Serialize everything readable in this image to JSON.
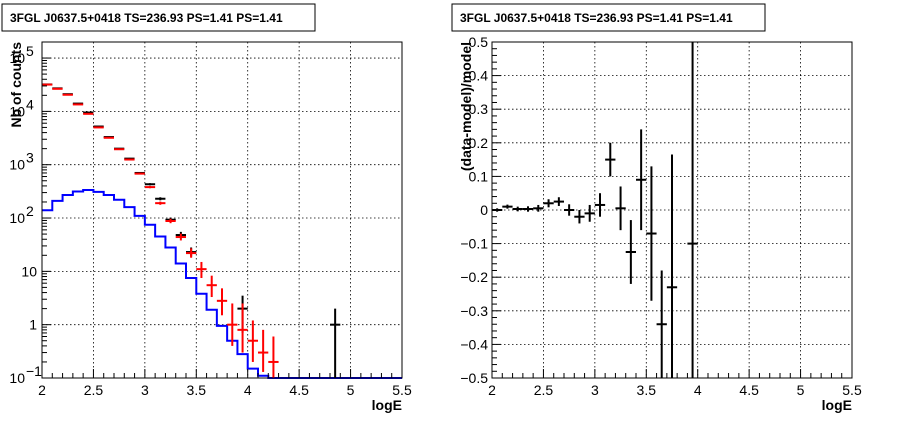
{
  "chart_data": [
    {
      "type": "scatter",
      "title": "3FGL J0637.5+0418 TS=236.93 PS=1.41 PS=1.41",
      "xlabel": "logE",
      "ylabel": "Nb of counts",
      "yscale": "log",
      "xlim": [
        2,
        5.5
      ],
      "ylim": [
        0.1,
        200000
      ],
      "grid": true,
      "x_ticks": [
        {
          "v": 2,
          "label": "2"
        },
        {
          "v": 2.5,
          "label": "2.5"
        },
        {
          "v": 3,
          "label": "3"
        },
        {
          "v": 3.5,
          "label": "3.5"
        },
        {
          "v": 4,
          "label": "4"
        },
        {
          "v": 4.5,
          "label": "4.5"
        },
        {
          "v": 5,
          "label": "5"
        },
        {
          "v": 5.5,
          "label": "5.5"
        }
      ],
      "y_ticks": [
        {
          "v": 0.1,
          "base": "10",
          "exp": "−1"
        },
        {
          "v": 1,
          "base": "1",
          "exp": ""
        },
        {
          "v": 10,
          "base": "10",
          "exp": ""
        },
        {
          "v": 100,
          "base": "10",
          "exp": "2"
        },
        {
          "v": 1000,
          "base": "10",
          "exp": "3"
        },
        {
          "v": 10000,
          "base": "10",
          "exp": "4"
        },
        {
          "v": 100000,
          "base": "10",
          "exp": "5"
        }
      ],
      "series": [
        {
          "kind": "step",
          "color": "#0000ff",
          "bin_edges": [
            2.0,
            2.1,
            2.2,
            2.3,
            2.4,
            2.5,
            2.6,
            2.7,
            2.8,
            2.9,
            3.0,
            3.1,
            3.2,
            3.3,
            3.4,
            3.5,
            3.6,
            3.7,
            3.8,
            3.9,
            4.0,
            4.1,
            4.2,
            4.3,
            4.4,
            4.5,
            4.6,
            4.7,
            4.8,
            4.9,
            5.0,
            5.1,
            5.2,
            5.3,
            5.4,
            5.5
          ],
          "values": [
            140,
            210,
            270,
            315,
            335,
            310,
            270,
            220,
            160,
            110,
            75,
            45,
            28,
            14,
            7.5,
            3.8,
            1.9,
            0.95,
            0.5,
            0.28,
            0.15,
            0.11,
            0.1,
            0.1,
            0.1,
            0.1,
            0.1,
            0.1,
            0.1,
            0.1,
            0.1,
            0.1,
            0.1,
            0.1,
            0.1
          ]
        },
        {
          "kind": "errorbar",
          "color": "#000000",
          "points": [
            {
              "x": 2.05,
              "xerr": 0.05,
              "y": 32000,
              "ylo": 31600,
              "yhi": 32400
            },
            {
              "x": 2.15,
              "xerr": 0.05,
              "y": 27000,
              "ylo": 26700,
              "yhi": 27300
            },
            {
              "x": 2.25,
              "xerr": 0.05,
              "y": 21000,
              "ylo": 20700,
              "yhi": 21300
            },
            {
              "x": 2.35,
              "xerr": 0.05,
              "y": 14000,
              "ylo": 13800,
              "yhi": 14200
            },
            {
              "x": 2.45,
              "xerr": 0.05,
              "y": 9500,
              "ylo": 9300,
              "yhi": 9700
            },
            {
              "x": 2.55,
              "xerr": 0.05,
              "y": 5200,
              "ylo": 5100,
              "yhi": 5300
            },
            {
              "x": 2.65,
              "xerr": 0.05,
              "y": 3300,
              "ylo": 3240,
              "yhi": 3360
            },
            {
              "x": 2.75,
              "xerr": 0.05,
              "y": 2000,
              "ylo": 1950,
              "yhi": 2050
            },
            {
              "x": 2.85,
              "xerr": 0.05,
              "y": 1300,
              "ylo": 1260,
              "yhi": 1340
            },
            {
              "x": 2.95,
              "xerr": 0.05,
              "y": 700,
              "ylo": 675,
              "yhi": 725
            },
            {
              "x": 3.05,
              "xerr": 0.05,
              "y": 430,
              "ylo": 410,
              "yhi": 450
            },
            {
              "x": 3.15,
              "xerr": 0.05,
              "y": 230,
              "ylo": 215,
              "yhi": 245
            },
            {
              "x": 3.25,
              "xerr": 0.05,
              "y": 93,
              "ylo": 84,
              "yhi": 102
            },
            {
              "x": 3.35,
              "xerr": 0.05,
              "y": 48,
              "ylo": 42,
              "yhi": 55
            },
            {
              "x": 3.45,
              "xerr": 0.05,
              "y": 23,
              "ylo": 19,
              "yhi": 28
            },
            {
              "x": 3.95,
              "xerr": 0.05,
              "y": 2,
              "ylo": 0.7,
              "yhi": 3.5
            },
            {
              "x": 4.85,
              "xerr": 0.05,
              "y": 1,
              "ylo": 0.1,
              "yhi": 2
            }
          ]
        },
        {
          "kind": "errorbar",
          "color": "#ff0000",
          "points": [
            {
              "x": 2.05,
              "xerr": 0.05,
              "y": 31800,
              "ylo": 31500,
              "yhi": 32100
            },
            {
              "x": 2.15,
              "xerr": 0.05,
              "y": 26500,
              "ylo": 26200,
              "yhi": 26800
            },
            {
              "x": 2.25,
              "xerr": 0.05,
              "y": 20500,
              "ylo": 20250,
              "yhi": 20750
            },
            {
              "x": 2.35,
              "xerr": 0.05,
              "y": 13500,
              "ylo": 13300,
              "yhi": 13700
            },
            {
              "x": 2.45,
              "xerr": 0.05,
              "y": 9000,
              "ylo": 8850,
              "yhi": 9150
            },
            {
              "x": 2.55,
              "xerr": 0.05,
              "y": 5000,
              "ylo": 4900,
              "yhi": 5100
            },
            {
              "x": 2.65,
              "xerr": 0.05,
              "y": 3200,
              "ylo": 3140,
              "yhi": 3260
            },
            {
              "x": 2.75,
              "xerr": 0.05,
              "y": 1950,
              "ylo": 1900,
              "yhi": 2000
            },
            {
              "x": 2.85,
              "xerr": 0.05,
              "y": 1250,
              "ylo": 1210,
              "yhi": 1290
            },
            {
              "x": 2.95,
              "xerr": 0.05,
              "y": 680,
              "ylo": 655,
              "yhi": 705
            },
            {
              "x": 3.05,
              "xerr": 0.05,
              "y": 380,
              "ylo": 362,
              "yhi": 398
            },
            {
              "x": 3.15,
              "xerr": 0.05,
              "y": 190,
              "ylo": 177,
              "yhi": 203
            },
            {
              "x": 3.25,
              "xerr": 0.05,
              "y": 88,
              "ylo": 80,
              "yhi": 97
            },
            {
              "x": 3.35,
              "xerr": 0.05,
              "y": 44,
              "ylo": 38,
              "yhi": 51
            },
            {
              "x": 3.45,
              "xerr": 0.05,
              "y": 22,
              "ylo": 18,
              "yhi": 27
            },
            {
              "x": 3.55,
              "xerr": 0.05,
              "y": 11,
              "ylo": 7.5,
              "yhi": 15
            },
            {
              "x": 3.65,
              "xerr": 0.05,
              "y": 5.5,
              "ylo": 3.3,
              "yhi": 8.3
            },
            {
              "x": 3.75,
              "xerr": 0.05,
              "y": 2.8,
              "ylo": 1.5,
              "yhi": 4.8
            },
            {
              "x": 3.85,
              "xerr": 0.05,
              "y": 1,
              "ylo": 0.4,
              "yhi": 2.5
            },
            {
              "x": 3.95,
              "xerr": 0.05,
              "y": 0.8,
              "ylo": 0.3,
              "yhi": 2.5
            },
            {
              "x": 4.05,
              "xerr": 0.05,
              "y": 0.5,
              "ylo": 0.2,
              "yhi": 1.2
            },
            {
              "x": 4.15,
              "xerr": 0.05,
              "y": 0.3,
              "ylo": 0.13,
              "yhi": 0.8
            },
            {
              "x": 4.25,
              "xerr": 0.05,
              "y": 0.2,
              "ylo": 0.1,
              "yhi": 0.6
            }
          ]
        }
      ]
    },
    {
      "type": "scatter",
      "title": "3FGL J0637.5+0418 TS=236.93 PS=1.41 PS=1.41",
      "xlabel": "logE",
      "ylabel": "(data-model)/model",
      "yscale": "linear",
      "xlim": [
        2,
        5.5
      ],
      "ylim": [
        -0.5,
        0.5
      ],
      "grid": true,
      "x_ticks": [
        {
          "v": 2,
          "label": "2"
        },
        {
          "v": 2.5,
          "label": "2.5"
        },
        {
          "v": 3,
          "label": "3"
        },
        {
          "v": 3.5,
          "label": "3.5"
        },
        {
          "v": 4,
          "label": "4"
        },
        {
          "v": 4.5,
          "label": "4.5"
        },
        {
          "v": 5,
          "label": "5"
        },
        {
          "v": 5.5,
          "label": "5.5"
        }
      ],
      "y_ticks": [
        {
          "v": -0.5,
          "label": "−0.5"
        },
        {
          "v": -0.4,
          "label": "−0.4"
        },
        {
          "v": -0.3,
          "label": "−0.3"
        },
        {
          "v": -0.2,
          "label": "−0.2"
        },
        {
          "v": -0.1,
          "label": "−0.1"
        },
        {
          "v": 0,
          "label": "0"
        },
        {
          "v": 0.1,
          "label": "0.1"
        },
        {
          "v": 0.2,
          "label": "0.2"
        },
        {
          "v": 0.3,
          "label": "0.3"
        },
        {
          "v": 0.4,
          "label": "0.4"
        },
        {
          "v": 0.5,
          "label": "0.5"
        }
      ],
      "series": [
        {
          "kind": "errorbar",
          "color": "#000000",
          "points": [
            {
              "x": 2.05,
              "xerr": 0.05,
              "y": 0.0,
              "ylo": -0.005,
              "yhi": 0.005
            },
            {
              "x": 2.15,
              "xerr": 0.05,
              "y": 0.01,
              "ylo": 0.004,
              "yhi": 0.016
            },
            {
              "x": 2.25,
              "xerr": 0.05,
              "y": 0.003,
              "ylo": -0.004,
              "yhi": 0.01
            },
            {
              "x": 2.35,
              "xerr": 0.05,
              "y": 0.003,
              "ylo": -0.005,
              "yhi": 0.011
            },
            {
              "x": 2.45,
              "xerr": 0.05,
              "y": 0.005,
              "ylo": -0.005,
              "yhi": 0.015
            },
            {
              "x": 2.55,
              "xerr": 0.05,
              "y": 0.02,
              "ylo": 0.008,
              "yhi": 0.032
            },
            {
              "x": 2.65,
              "xerr": 0.05,
              "y": 0.025,
              "ylo": 0.012,
              "yhi": 0.038
            },
            {
              "x": 2.75,
              "xerr": 0.05,
              "y": 0.0,
              "ylo": -0.017,
              "yhi": 0.017
            },
            {
              "x": 2.85,
              "xerr": 0.05,
              "y": -0.02,
              "ylo": -0.04,
              "yhi": 0.0
            },
            {
              "x": 2.95,
              "xerr": 0.05,
              "y": -0.01,
              "ylo": -0.035,
              "yhi": 0.015
            },
            {
              "x": 3.05,
              "xerr": 0.05,
              "y": 0.015,
              "ylo": -0.02,
              "yhi": 0.05
            },
            {
              "x": 3.15,
              "xerr": 0.05,
              "y": 0.15,
              "ylo": 0.1,
              "yhi": 0.2
            },
            {
              "x": 3.25,
              "xerr": 0.05,
              "y": 0.005,
              "ylo": -0.06,
              "yhi": 0.07
            },
            {
              "x": 3.35,
              "xerr": 0.05,
              "y": -0.125,
              "ylo": -0.22,
              "yhi": -0.03
            },
            {
              "x": 3.45,
              "xerr": 0.05,
              "y": 0.09,
              "ylo": -0.06,
              "yhi": 0.24
            },
            {
              "x": 3.55,
              "xerr": 0.05,
              "y": -0.07,
              "ylo": -0.27,
              "yhi": 0.13
            },
            {
              "x": 3.65,
              "xerr": 0.05,
              "y": -0.34,
              "ylo": -0.5,
              "yhi": -0.18
            },
            {
              "x": 3.75,
              "xerr": 0.05,
              "y": -0.23,
              "ylo": -0.5,
              "yhi": 0.165
            },
            {
              "x": 3.95,
              "xerr": 0.05,
              "y": -0.1,
              "ylo": -0.5,
              "yhi": 0.5
            }
          ]
        }
      ]
    }
  ]
}
